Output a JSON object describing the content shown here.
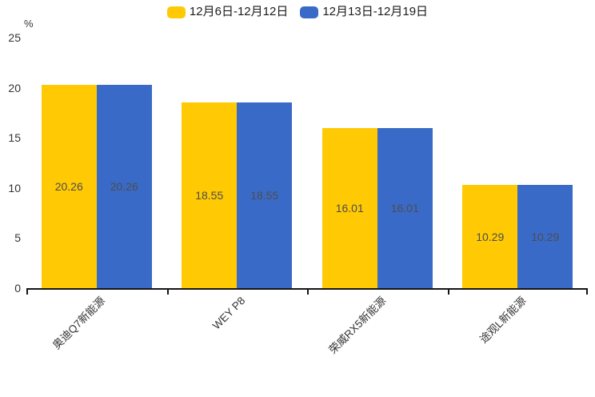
{
  "chart_data": {
    "type": "bar",
    "title": "",
    "unit_label": "%",
    "categories": [
      "奥迪Q7新能源",
      "WEY P8",
      "荣威RX5新能源",
      "途观L新能源"
    ],
    "series": [
      {
        "name": "12月6日-12月12日",
        "color": "#FFC903",
        "values": [
          20.26,
          18.55,
          16.01,
          10.29
        ]
      },
      {
        "name": "12月13日-12月19日",
        "color": "#3A6AC7",
        "values": [
          20.26,
          18.55,
          16.01,
          10.29
        ]
      }
    ],
    "ylim": [
      0,
      25
    ],
    "yticks": [
      0,
      5,
      10,
      15,
      20,
      25
    ],
    "grid": false,
    "legend_position": "top-center",
    "value_labels": true,
    "axis_color": "#141414",
    "text_color": "#333333",
    "value_label_color": "#4d4d4d",
    "background_color": "#ffffff"
  }
}
